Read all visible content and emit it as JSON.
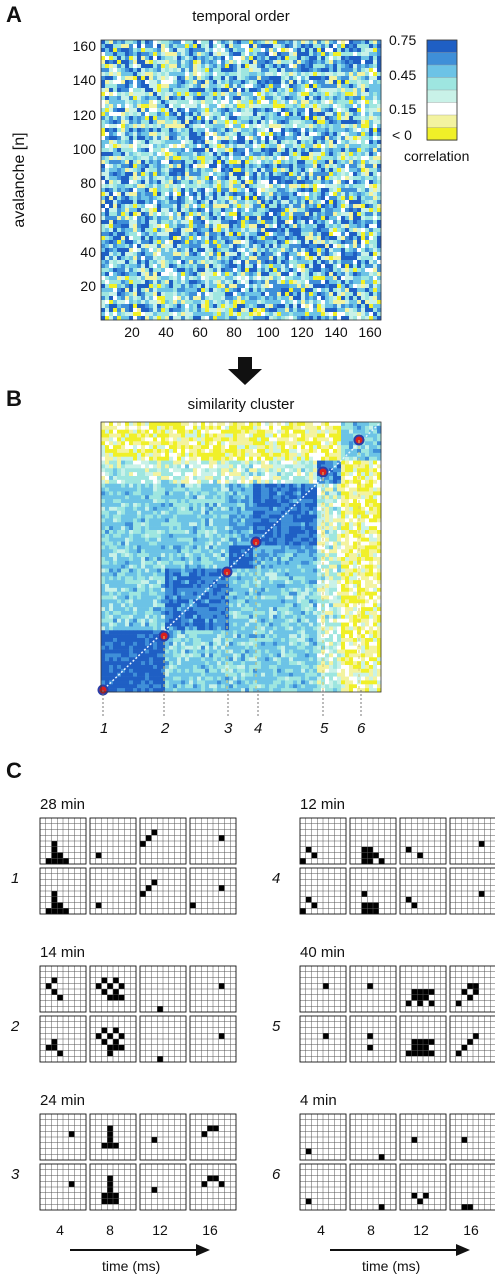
{
  "panels": {
    "a": {
      "letter": "A",
      "title": "temporal order",
      "ylabel": "avalanche [n]",
      "yticks": [
        "160",
        "140",
        "120",
        "100",
        "80",
        "60",
        "40",
        "20"
      ],
      "xticks": [
        "20",
        "40",
        "60",
        "80",
        "100",
        "120",
        "140",
        "160"
      ],
      "colorbar": {
        "labels": [
          "0.75",
          "0.45",
          "0.15",
          "< 0"
        ],
        "title": "correlation",
        "colors": [
          "#1f5fc4",
          "#3f8fd8",
          "#6cc3e6",
          "#9ee6e0",
          "#c9f2e8",
          "#ffffff",
          "#f3f3a0",
          "#f0f028"
        ]
      }
    },
    "b": {
      "letter": "B",
      "title": "similarity cluster",
      "cluster_numbers": [
        "1",
        "2",
        "3",
        "4",
        "5",
        "6"
      ]
    },
    "c": {
      "letter": "C",
      "clusters": [
        {
          "number": "1",
          "duration": "28 min"
        },
        {
          "number": "4",
          "duration": "12 min"
        },
        {
          "number": "2",
          "duration": "14 min"
        },
        {
          "number": "5",
          "duration": "40 min"
        },
        {
          "number": "3",
          "duration": "24 min"
        },
        {
          "number": "6",
          "duration": "4 min"
        }
      ],
      "time_ticks": [
        "4",
        "8",
        "12",
        "16"
      ],
      "time_label": "time (ms)"
    }
  }
}
